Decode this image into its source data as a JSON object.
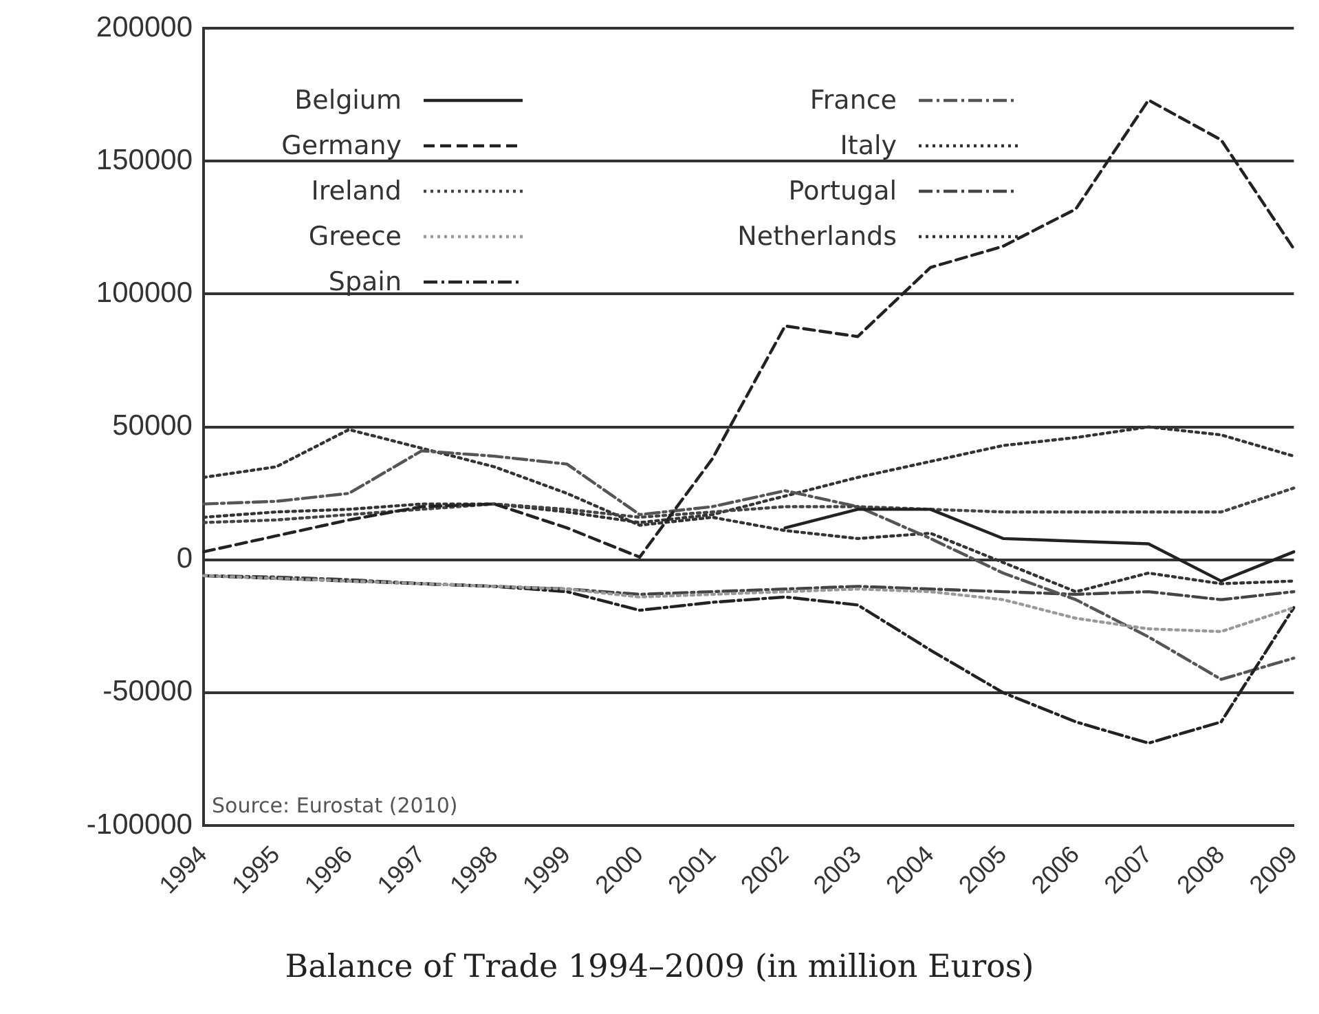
{
  "chart_data": {
    "type": "line",
    "title": "Balance of Trade 1994–2009 (in million Euros)",
    "categories": [
      "1994",
      "1995",
      "1996",
      "1997",
      "1998",
      "1999",
      "2000",
      "2001",
      "2002",
      "2003",
      "2004",
      "2005",
      "2006",
      "2007",
      "2008",
      "2009"
    ],
    "ylim": [
      -100000,
      200000
    ],
    "yticks": [
      -100000,
      -50000,
      0,
      50000,
      100000,
      150000,
      200000
    ],
    "grid": "y",
    "legend": "top left",
    "marker": "none",
    "annotations": [
      {
        "text": "Source: Eurostat (2010)"
      }
    ],
    "series": [
      {
        "name": "Belgium",
        "color": "#222222",
        "line_style": "solid",
        "values": [
          null,
          null,
          null,
          null,
          null,
          null,
          null,
          null,
          12000,
          19000,
          19000,
          8000,
          7000,
          6000,
          -8000,
          3000
        ]
      },
      {
        "name": "Germany",
        "color": "#222222",
        "line_style": "dashed",
        "values": [
          3000,
          9000,
          15000,
          20000,
          21000,
          12000,
          1000,
          38000,
          88000,
          84000,
          110000,
          118000,
          132000,
          173000,
          158000,
          117000
        ]
      },
      {
        "name": "Ireland",
        "color": "#444444",
        "line_style": "dotted",
        "values": [
          14000,
          15000,
          17000,
          19000,
          21000,
          19000,
          16000,
          18000,
          20000,
          20000,
          19000,
          18000,
          18000,
          18000,
          18000,
          27000
        ]
      },
      {
        "name": "Greece",
        "color": "#999999",
        "line_style": "dotted",
        "values": [
          -6000,
          -7000,
          -8000,
          -9000,
          -10000,
          -11000,
          -14000,
          -13000,
          -12000,
          -11000,
          -12000,
          -15000,
          -22000,
          -26000,
          -27000,
          -18000
        ]
      },
      {
        "name": "Spain",
        "color": "#222222",
        "line_style": "dashdot",
        "values": [
          -6000,
          -7000,
          -8000,
          -9000,
          -10000,
          -12000,
          -19000,
          -16000,
          -14000,
          -17000,
          -34000,
          -50000,
          -61000,
          -69000,
          -61000,
          -18000
        ]
      },
      {
        "name": "France",
        "color": "#555555",
        "line_style": "dashdot",
        "values": [
          21000,
          22000,
          25000,
          41000,
          39000,
          36000,
          17000,
          20000,
          26000,
          20000,
          8000,
          -5000,
          -15000,
          -29000,
          -45000,
          -37000
        ]
      },
      {
        "name": "Italy",
        "color": "#333333",
        "line_style": "dotted",
        "values": [
          31000,
          35000,
          49000,
          42000,
          35000,
          25000,
          13000,
          16000,
          11000,
          8000,
          10000,
          -1000,
          -12000,
          -5000,
          -9000,
          -8000
        ]
      },
      {
        "name": "Portugal",
        "color": "#444444",
        "line_style": "dashdot",
        "values": [
          -6000,
          -6500,
          -7500,
          -9000,
          -10000,
          -11000,
          -13000,
          -12000,
          -11000,
          -10000,
          -11000,
          -12000,
          -13000,
          -12000,
          -15000,
          -12000
        ]
      },
      {
        "name": "Netherlands",
        "color": "#333333",
        "line_style": "dotted",
        "values": [
          16000,
          18000,
          19000,
          21000,
          21000,
          18000,
          14000,
          17000,
          24000,
          31000,
          37000,
          43000,
          46000,
          50000,
          47000,
          39000
        ]
      }
    ]
  }
}
